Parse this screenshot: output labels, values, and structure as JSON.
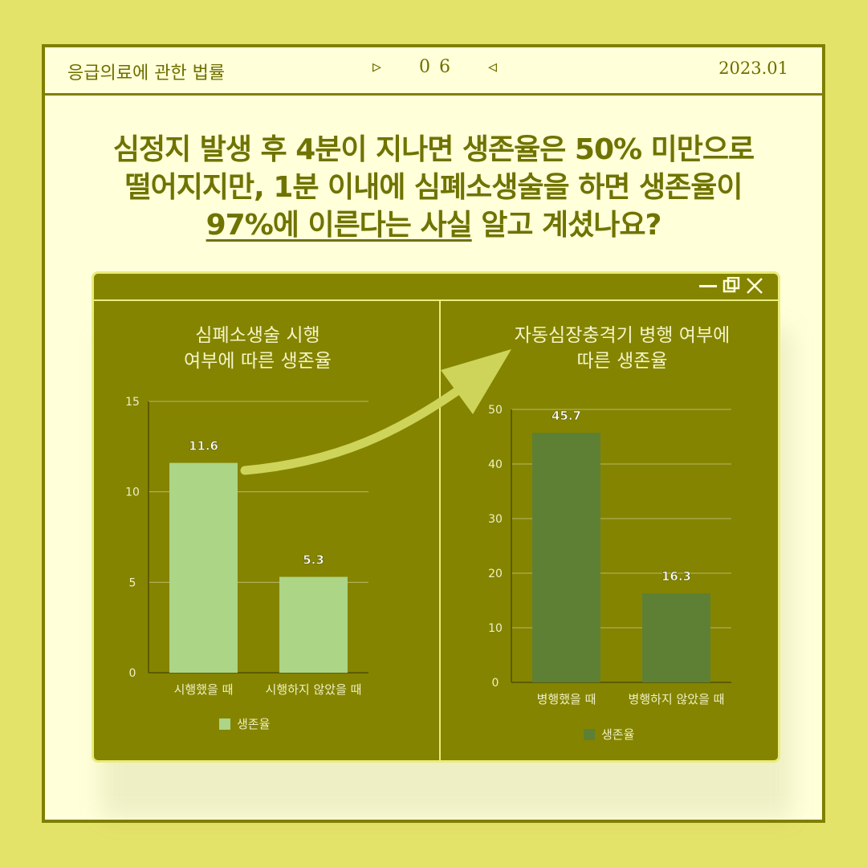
{
  "colors": {
    "outer": "#e3e36a",
    "accent": "#7f7f00",
    "panel": "#848400",
    "bar_left": "#acd586",
    "bar_right": "#5d8035"
  },
  "header": {
    "title": "응급의료에 관한 법률",
    "page_prev": "▹",
    "page_number": "0 6",
    "page_next": "◃",
    "date": "2023.01"
  },
  "headline": {
    "line1": "심정지 발생 후 4분이 지나면 생존율은 50% 미만으로",
    "line2": "떨어지지만, 1분 이내에 심폐소생술을 하면 생존율이",
    "line3_underlined": "97%에 이른다는 사실",
    "line3_rest": " 알고 계셨나요?"
  },
  "window_icons": [
    "minimize-icon",
    "restore-icon",
    "close-icon"
  ],
  "chart_data": [
    {
      "type": "bar",
      "title": "심폐소생술 시행 여부에 따른 생존율",
      "title_lines": [
        "심폐소생술 시행",
        "여부에 따른 생존율"
      ],
      "categories": [
        "시행했을 때",
        "시행하지 않았을 때"
      ],
      "series": [
        {
          "name": "생존율",
          "values": [
            11.6,
            5.3
          ]
        }
      ],
      "value_labels": [
        "11.6",
        "5.3"
      ],
      "ylim": [
        0,
        15
      ],
      "yticks": [
        0,
        5,
        10,
        15
      ],
      "ytick_labels": [
        "0",
        "5",
        "10",
        "15"
      ],
      "grid": true,
      "legend": "bottom"
    },
    {
      "type": "bar",
      "title": "자동심장충격기 병행 여부에 따른 생존율",
      "title_lines": [
        "자동심장충격기 병행 여부에",
        "따른 생존율"
      ],
      "categories": [
        "병행했을 때",
        "병행하지 않았을 때"
      ],
      "series": [
        {
          "name": "생존율",
          "values": [
            45.7,
            16.3
          ]
        }
      ],
      "value_labels": [
        "45.7",
        "16.3"
      ],
      "ylim": [
        0,
        50
      ],
      "yticks": [
        0,
        10,
        20,
        30,
        40,
        50
      ],
      "ytick_labels": [
        "0",
        "10",
        "20",
        "30",
        "40",
        "50"
      ],
      "grid": true,
      "legend": "bottom"
    }
  ]
}
